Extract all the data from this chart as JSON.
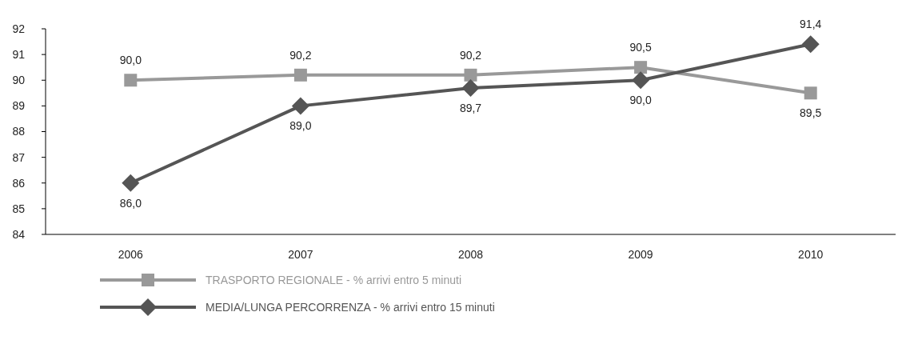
{
  "chart_data": {
    "type": "line",
    "categories": [
      "2006",
      "2007",
      "2008",
      "2009",
      "2010"
    ],
    "ylim": [
      84,
      92
    ],
    "yticks": [
      84,
      85,
      86,
      87,
      88,
      89,
      90,
      91,
      92
    ],
    "grid": false,
    "legend": "bottom",
    "series": [
      {
        "name": "TRASPORTO REGIONALE - % arrivi entro 5 minuti",
        "color": "#999999",
        "marker": "square",
        "values": [
          90.0,
          90.2,
          90.2,
          90.5,
          89.5
        ],
        "value_labels": [
          "90,0",
          "90,2",
          "90,2",
          "90,5",
          "89,5"
        ]
      },
      {
        "name": "MEDIA/LUNGA PERCORRENZA - % arrivi entro 15 minuti",
        "color": "#555555",
        "marker": "diamond",
        "values": [
          86.0,
          89.0,
          89.7,
          90.0,
          91.4
        ],
        "value_labels": [
          "86,0",
          "89,0",
          "89,7",
          "90,0",
          "91,4"
        ]
      }
    ]
  }
}
